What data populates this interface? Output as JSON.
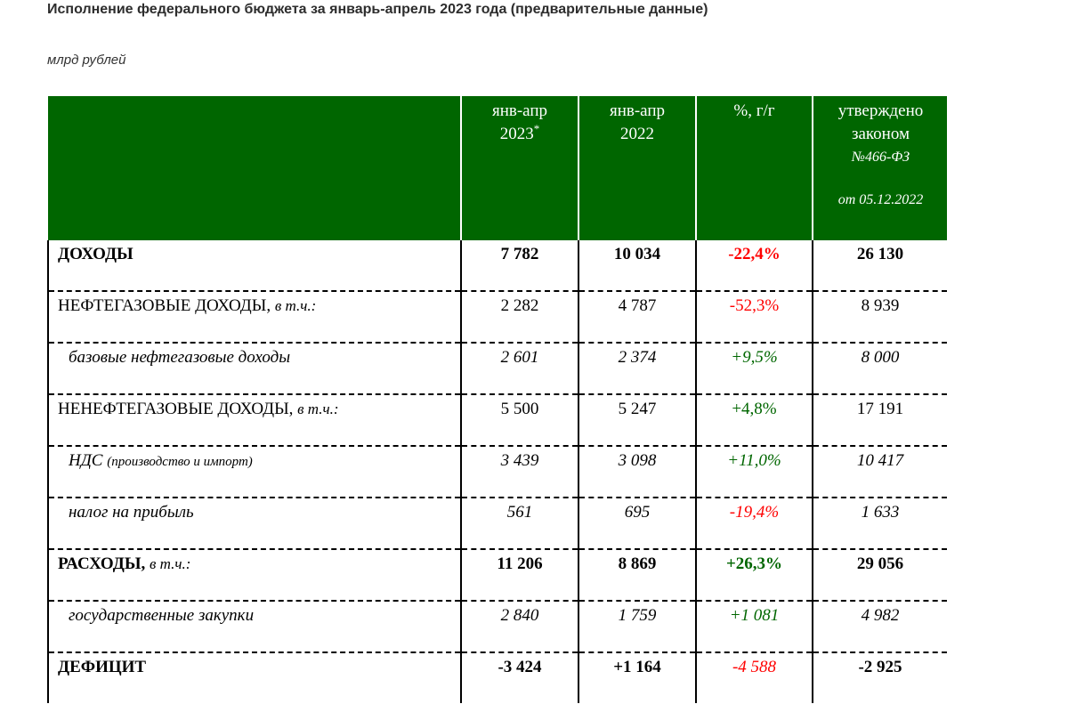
{
  "title": "Исполнение федерального бюджета за январь-апрель 2023 года (предварительные данные)",
  "unit": "млрд рублей",
  "colors": {
    "header_bg": "#006600",
    "negative": "#ff0000",
    "positive": "#006600"
  },
  "table": {
    "headers": {
      "col1_line1": "янв-апр",
      "col1_line2": "2023",
      "col1_mark": "*",
      "col2_line1": "янв-апр",
      "col2_line2": "2022",
      "col3": "%, г/г",
      "col4_line1": "утверждено",
      "col4_line2": "законом",
      "col4_law": "№466-ФЗ",
      "col4_date": "от 05.12.2022"
    },
    "rows": [
      {
        "label": "ДОХОДЫ",
        "qualifier": "",
        "v2023": "7 782",
        "v2022": "10 034",
        "yoy": "-22,4%",
        "law": "26 130"
      },
      {
        "label": "НЕФТЕГАЗОВЫЕ ДОХОДЫ,",
        "qualifier": "в т.ч.:",
        "v2023": "2 282",
        "v2022": "4 787",
        "yoy": "-52,3%",
        "law": "8 939"
      },
      {
        "label": "базовые нефтегазовые доходы",
        "qualifier": "",
        "v2023": "2 601",
        "v2022": "2 374",
        "yoy": "+9,5%",
        "law": "8 000"
      },
      {
        "label": "НЕНЕФТЕГАЗОВЫЕ ДОХОДЫ,",
        "qualifier": "в т.ч.:",
        "v2023": "5 500",
        "v2022": "5 247",
        "yoy": "+4,8%",
        "law": "17 191"
      },
      {
        "label": "НДС",
        "qualifier": "(производство и импорт)",
        "v2023": "3 439",
        "v2022": "3 098",
        "yoy": "+11,0%",
        "law": "10 417"
      },
      {
        "label": "налог на прибыль",
        "qualifier": "",
        "v2023": "561",
        "v2022": "695",
        "yoy": "-19,4%",
        "law": "1 633"
      },
      {
        "label": "РАСХОДЫ,",
        "qualifier": "в т.ч.:",
        "v2023": "11 206",
        "v2022": "8 869",
        "yoy": "+26,3%",
        "law": "29 056"
      },
      {
        "label": "государственные закупки",
        "qualifier": "",
        "v2023": "2 840",
        "v2022": "1 759",
        "yoy": "+1 081",
        "law": "4 982"
      },
      {
        "label": "ДЕФИЦИТ",
        "qualifier": "",
        "v2023": "-3 424",
        "v2022": "+1 164",
        "yoy": "-4 588",
        "law": "-2 925"
      }
    ]
  }
}
